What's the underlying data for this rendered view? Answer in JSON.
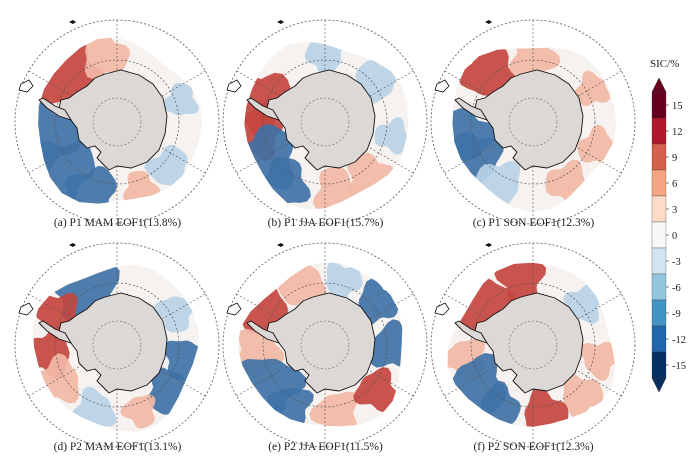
{
  "figure": {
    "panels": [
      {
        "id": "a",
        "caption": "(a) P1 MAM EOF1(13.8%)"
      },
      {
        "id": "b",
        "caption": "(b) P1 JJA EOF1(15.7%)"
      },
      {
        "id": "c",
        "caption": "(c) P1 SON EOF1(12.3%)"
      },
      {
        "id": "d",
        "caption": "(d) P2 MAM EOF1(13.1%)"
      },
      {
        "id": "e",
        "caption": "(e) P2 JJA EOF1(11.5%)"
      },
      {
        "id": "f",
        "caption": "(f) P2 SON EOF1(12.3%)"
      }
    ]
  },
  "colorbar": {
    "title": "SIC/%",
    "ticks": [
      "15",
      "12",
      "9",
      "6",
      "3",
      "0",
      "-3",
      "-6",
      "-9",
      "-12",
      "-15"
    ],
    "colors": [
      "#67001f",
      "#b2182b",
      "#d6604d",
      "#f4a582",
      "#fddbc7",
      "#f7f7f7",
      "#d1e5f0",
      "#92c5de",
      "#4393c3",
      "#2166ac",
      "#053061"
    ]
  },
  "colors": {
    "land": "#dcd8d6",
    "red": "#c4463f",
    "blue": "#3f72a6",
    "pale_red": "#f2b8a6",
    "pale_blue": "#b8d3e6"
  }
}
